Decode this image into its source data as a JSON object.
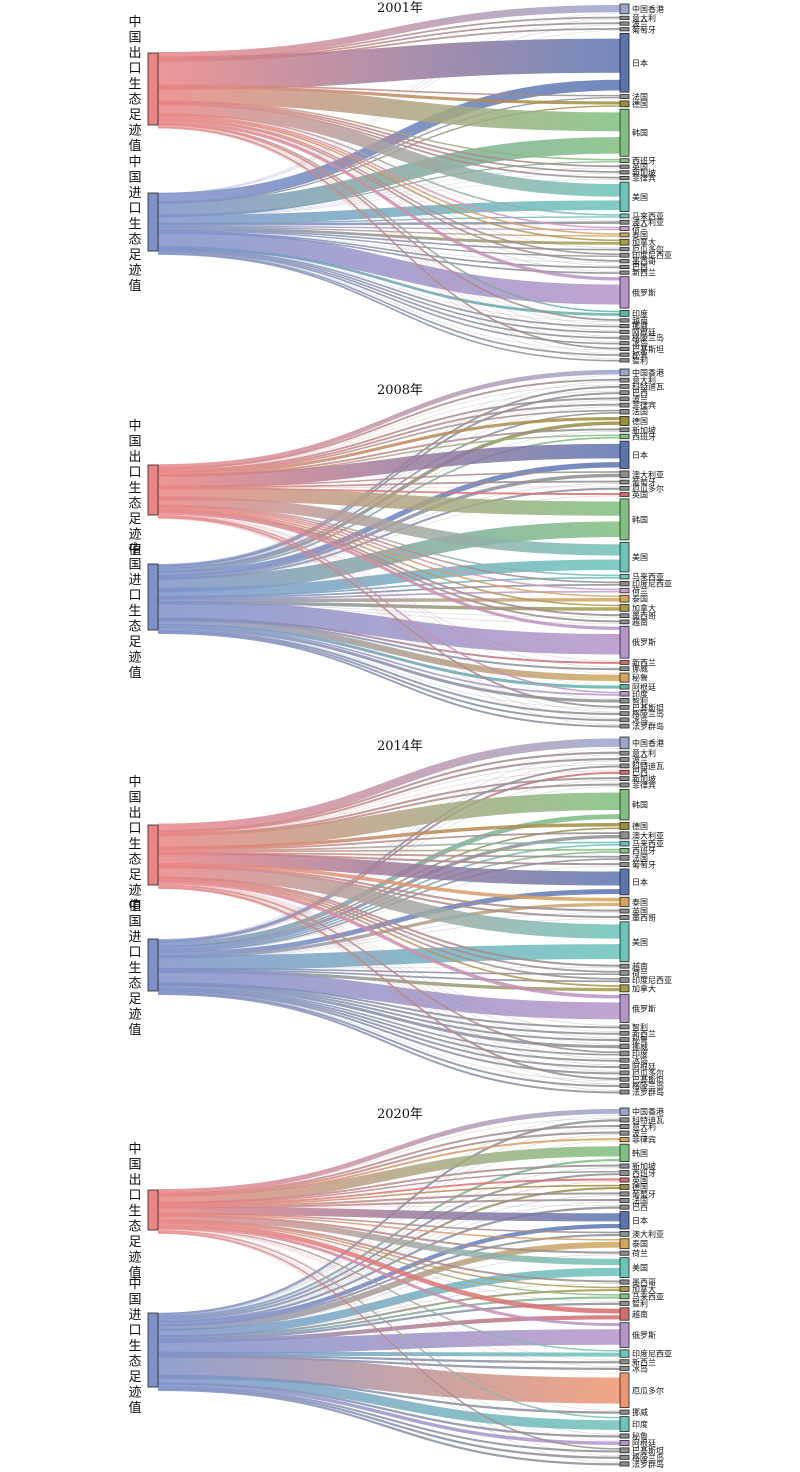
{
  "figure": {
    "panels": [
      {
        "year": "2001年",
        "export_label": "中国出口生态足迹值",
        "import_label": "中国进口生态足迹值",
        "export_value": 72,
        "import_value": 58,
        "partners": [
          {
            "name": "中国香港",
            "export": 5,
            "import": 0,
            "color": "#9aa5cc"
          },
          {
            "name": "意大利",
            "export": 1,
            "import": 0,
            "color": "#8e8e8e"
          },
          {
            "name": "波兰",
            "export": 1,
            "import": 0,
            "color": "#8e8e8e"
          },
          {
            "name": "葡萄牙",
            "export": 1,
            "import": 0,
            "color": "#8e8e8e"
          },
          {
            "name": "日本",
            "export": 22,
            "import": 8,
            "color": "#5b74b0"
          },
          {
            "name": "法国",
            "export": 1,
            "import": 1,
            "color": "#8e8e8e"
          },
          {
            "name": "德国",
            "export": 2,
            "import": 1,
            "color": "#9a8e3a"
          },
          {
            "name": "韩国",
            "export": 12,
            "import": 12,
            "color": "#7fbf7f"
          },
          {
            "name": "西班牙",
            "export": 1,
            "import": 1,
            "color": "#7fbf7f"
          },
          {
            "name": "英国",
            "export": 1,
            "import": 0,
            "color": "#8e8e8e"
          },
          {
            "name": "新加坡",
            "export": 1,
            "import": 0,
            "color": "#8e8e8e"
          },
          {
            "name": "菲律宾",
            "export": 1,
            "import": 0,
            "color": "#8e8e8e"
          },
          {
            "name": "美国",
            "export": 8,
            "import": 7,
            "color": "#6cc3b9"
          },
          {
            "name": "马来西亚",
            "export": 1,
            "import": 1,
            "color": "#6cc3b9"
          },
          {
            "name": "澳大利亚",
            "export": 0,
            "import": 2,
            "color": "#8e8e8e"
          },
          {
            "name": "荷兰",
            "export": 1,
            "import": 1,
            "color": "#c9a0c9"
          },
          {
            "name": "泰国",
            "export": 1,
            "import": 1,
            "color": "#d4a55a"
          },
          {
            "name": "加拿大",
            "export": 1,
            "import": 2,
            "color": "#a59b48"
          },
          {
            "name": "厄瓜多尔",
            "export": 0,
            "import": 1,
            "color": "#8e8e8e"
          },
          {
            "name": "印度尼西亚",
            "export": 1,
            "import": 1,
            "color": "#8e8e8e"
          },
          {
            "name": "墨西哥",
            "export": 1,
            "import": 0,
            "color": "#8e8e8e"
          },
          {
            "name": "巴西",
            "export": 0,
            "import": 1,
            "color": "#8e8e8e"
          },
          {
            "name": "新西兰",
            "export": 0,
            "import": 1,
            "color": "#8e8e8e"
          },
          {
            "name": "俄罗斯",
            "export": 2,
            "import": 14,
            "color": "#b594c9"
          },
          {
            "name": "印度",
            "export": 1,
            "import": 2,
            "color": "#5fb4a8"
          },
          {
            "name": "越南",
            "export": 1,
            "import": 0,
            "color": "#8e8e8e"
          },
          {
            "name": "挪威",
            "export": 0,
            "import": 1,
            "color": "#8e8e8e"
          },
          {
            "name": "阿根廷",
            "export": 0,
            "import": 1,
            "color": "#8e8e8e"
          },
          {
            "name": "格陵兰岛",
            "export": 0,
            "import": 1,
            "color": "#8e8e8e"
          },
          {
            "name": "冰岛",
            "export": 0,
            "import": 1,
            "color": "#8e8e8e"
          },
          {
            "name": "巴基斯坦",
            "export": 1,
            "import": 0,
            "color": "#8e8e8e"
          },
          {
            "name": "秘鲁",
            "export": 0,
            "import": 1,
            "color": "#8e8e8e"
          },
          {
            "name": "智利",
            "export": 0,
            "import": 1,
            "color": "#8e8e8e"
          }
        ]
      },
      {
        "year": "2008年",
        "export_label": "中国出口生态足迹值",
        "import_label": "中国进口生态足迹值",
        "export_value": 50,
        "import_value": 66,
        "partners": [
          {
            "name": "中国香港",
            "export": 3,
            "import": 0,
            "color": "#9aa5cc"
          },
          {
            "name": "意大利",
            "export": 1,
            "import": 0,
            "color": "#8e8e8e"
          },
          {
            "name": "科特迪瓦",
            "export": 0,
            "import": 1,
            "color": "#8e8e8e"
          },
          {
            "name": "巴西",
            "export": 0,
            "import": 1,
            "color": "#8e8e8e"
          },
          {
            "name": "波兰",
            "export": 1,
            "import": 0,
            "color": "#8e8e8e"
          },
          {
            "name": "菲律宾",
            "export": 1,
            "import": 0,
            "color": "#8e8e8e"
          },
          {
            "name": "法国",
            "export": 1,
            "import": 1,
            "color": "#8e8e8e"
          },
          {
            "name": "德国",
            "export": 2,
            "import": 2,
            "color": "#9a8e3a"
          },
          {
            "name": "新加坡",
            "export": 1,
            "import": 0,
            "color": "#8e8e8e"
          },
          {
            "name": "西班牙",
            "export": 1,
            "import": 1,
            "color": "#7fbf7f"
          },
          {
            "name": "日本",
            "export": 9,
            "import": 3,
            "color": "#5b74b0"
          },
          {
            "name": "澳大利亚",
            "export": 1,
            "import": 2,
            "color": "#8e8e8e"
          },
          {
            "name": "葡萄牙",
            "export": 1,
            "import": 0,
            "color": "#8e8e8e"
          },
          {
            "name": "厄瓜多尔",
            "export": 0,
            "import": 1,
            "color": "#8e8e8e"
          },
          {
            "name": "英国",
            "export": 1,
            "import": 0,
            "color": "#d46c6c"
          },
          {
            "name": "韩国",
            "export": 9,
            "import": 9,
            "color": "#7fbf7f"
          },
          {
            "name": "美国",
            "export": 7,
            "import": 6,
            "color": "#6cc3b9"
          },
          {
            "name": "马来西亚",
            "export": 1,
            "import": 1,
            "color": "#6cc3b9"
          },
          {
            "name": "印度尼西亚",
            "export": 1,
            "import": 1,
            "color": "#8e8e8e"
          },
          {
            "name": "荷兰",
            "export": 1,
            "import": 1,
            "color": "#c9a0c9"
          },
          {
            "name": "泰国",
            "export": 1,
            "import": 2,
            "color": "#d4a55a"
          },
          {
            "name": "加拿大",
            "export": 1,
            "import": 2,
            "color": "#a59b48"
          },
          {
            "name": "墨西哥",
            "export": 1,
            "import": 0,
            "color": "#8e8e8e"
          },
          {
            "name": "越南",
            "export": 1,
            "import": 0,
            "color": "#8e8e8e"
          },
          {
            "name": "俄罗斯",
            "export": 2,
            "import": 12,
            "color": "#b594c9"
          },
          {
            "name": "新西兰",
            "export": 0,
            "import": 1,
            "color": "#d46c6c"
          },
          {
            "name": "挪威",
            "export": 0,
            "import": 1,
            "color": "#8e8e8e"
          },
          {
            "name": "秘鲁",
            "export": 0,
            "import": 4,
            "color": "#d4a55a"
          },
          {
            "name": "阿根廷",
            "export": 0,
            "import": 2,
            "color": "#5fb4a8"
          },
          {
            "name": "印度",
            "export": 1,
            "import": 1,
            "color": "#b594c9"
          },
          {
            "name": "智利",
            "export": 0,
            "import": 2,
            "color": "#8e8e8e"
          },
          {
            "name": "巴基斯坦",
            "export": 1,
            "import": 0,
            "color": "#8e8e8e"
          },
          {
            "name": "格陵兰岛",
            "export": 0,
            "import": 1,
            "color": "#8e8e8e"
          },
          {
            "name": "冰岛",
            "export": 0,
            "import": 1,
            "color": "#8e8e8e"
          },
          {
            "name": "法罗群岛",
            "export": 0,
            "import": 1,
            "color": "#8e8e8e"
          }
        ]
      },
      {
        "year": "2014年",
        "export_label": "中国出口生态足迹值",
        "import_label": "中国进口生态足迹值",
        "export_value": 60,
        "import_value": 52,
        "partners": [
          {
            "name": "中国香港",
            "export": 5,
            "import": 0,
            "color": "#9aa5cc"
          },
          {
            "name": "意大利",
            "export": 1,
            "import": 0,
            "color": "#8e8e8e"
          },
          {
            "name": "波兰",
            "export": 1,
            "import": 0,
            "color": "#8e8e8e"
          },
          {
            "name": "科特迪瓦",
            "export": 0,
            "import": 1,
            "color": "#8e8e8e"
          },
          {
            "name": "巴西",
            "export": 0,
            "import": 1,
            "color": "#d46c6c"
          },
          {
            "name": "新加坡",
            "export": 1,
            "import": 0,
            "color": "#8e8e8e"
          },
          {
            "name": "菲律宾",
            "export": 1,
            "import": 0,
            "color": "#8e8e8e"
          },
          {
            "name": "韩国",
            "export": 10,
            "import": 3,
            "color": "#7fbf7f"
          },
          {
            "name": "德国",
            "export": 2,
            "import": 1,
            "color": "#9a8e3a"
          },
          {
            "name": "澳大利亚",
            "export": 1,
            "import": 2,
            "color": "#8e8e8e"
          },
          {
            "name": "马来西亚",
            "export": 1,
            "import": 1,
            "color": "#6cc3b9"
          },
          {
            "name": "西班牙",
            "export": 1,
            "import": 1,
            "color": "#7fbf7f"
          },
          {
            "name": "法国",
            "export": 1,
            "import": 1,
            "color": "#8e8e8e"
          },
          {
            "name": "葡萄牙",
            "export": 1,
            "import": 0,
            "color": "#8e8e8e"
          },
          {
            "name": "日本",
            "export": 8,
            "import": 3,
            "color": "#5b74b0"
          },
          {
            "name": "泰国",
            "export": 2,
            "import": 2,
            "color": "#d4a55a"
          },
          {
            "name": "英国",
            "export": 1,
            "import": 0,
            "color": "#8e8e8e"
          },
          {
            "name": "墨西哥",
            "export": 1,
            "import": 0,
            "color": "#8e8e8e"
          },
          {
            "name": "美国",
            "export": 8,
            "import": 9,
            "color": "#6cc3b9"
          },
          {
            "name": "越南",
            "export": 1,
            "import": 0,
            "color": "#8e8e8e"
          },
          {
            "name": "荷兰",
            "export": 1,
            "import": 1,
            "color": "#8e8e8e"
          },
          {
            "name": "印度尼西亚",
            "export": 1,
            "import": 1,
            "color": "#8e8e8e"
          },
          {
            "name": "加拿大",
            "export": 1,
            "import": 2,
            "color": "#a59b48"
          },
          {
            "name": "俄罗斯",
            "export": 2,
            "import": 10,
            "color": "#b594c9"
          },
          {
            "name": "智利",
            "export": 0,
            "import": 1,
            "color": "#8e8e8e"
          },
          {
            "name": "新西兰",
            "export": 0,
            "import": 1,
            "color": "#8e8e8e"
          },
          {
            "name": "秘鲁",
            "export": 0,
            "import": 1,
            "color": "#8e8e8e"
          },
          {
            "name": "挪威",
            "export": 0,
            "import": 2,
            "color": "#8e8e8e"
          },
          {
            "name": "印度",
            "export": 1,
            "import": 1,
            "color": "#8e8e8e"
          },
          {
            "name": "冰岛",
            "export": 0,
            "import": 1,
            "color": "#8e8e8e"
          },
          {
            "name": "阿根廷",
            "export": 0,
            "import": 1,
            "color": "#8e8e8e"
          },
          {
            "name": "厄瓜多尔",
            "export": 0,
            "import": 1,
            "color": "#8e8e8e"
          },
          {
            "name": "巴基斯坦",
            "export": 1,
            "import": 0,
            "color": "#8e8e8e"
          },
          {
            "name": "格陵兰岛",
            "export": 0,
            "import": 1,
            "color": "#8e8e8e"
          },
          {
            "name": "法罗群岛",
            "export": 0,
            "import": 1,
            "color": "#8e8e8e"
          }
        ]
      },
      {
        "year": "2020年",
        "export_label": "中国出口生态足迹值",
        "import_label": "中国进口生态足迹值",
        "export_value": 40,
        "import_value": 74,
        "partners": [
          {
            "name": "中国香港",
            "export": 3,
            "import": 0,
            "color": "#9aa5cc"
          },
          {
            "name": "科特迪瓦",
            "export": 0,
            "import": 1,
            "color": "#8e8e8e"
          },
          {
            "name": "意大利",
            "export": 1,
            "import": 0,
            "color": "#8e8e8e"
          },
          {
            "name": "波兰",
            "export": 1,
            "import": 0,
            "color": "#8e8e8e"
          },
          {
            "name": "菲律宾",
            "export": 1,
            "import": 0,
            "color": "#d4a55a"
          },
          {
            "name": "韩国",
            "export": 6,
            "import": 1,
            "color": "#7fbf7f"
          },
          {
            "name": "新加坡",
            "export": 1,
            "import": 0,
            "color": "#8e8e8e"
          },
          {
            "name": "西班牙",
            "export": 1,
            "import": 1,
            "color": "#8e8e8e"
          },
          {
            "name": "英国",
            "export": 1,
            "import": 0,
            "color": "#d46c6c"
          },
          {
            "name": "德国",
            "export": 1,
            "import": 1,
            "color": "#9a8e3a"
          },
          {
            "name": "葡萄牙",
            "export": 1,
            "import": 0,
            "color": "#8e8e8e"
          },
          {
            "name": "法国",
            "export": 1,
            "import": 0,
            "color": "#8e8e8e"
          },
          {
            "name": "巴西",
            "export": 0,
            "import": 1,
            "color": "#8e8e8e"
          },
          {
            "name": "日本",
            "export": 5,
            "import": 2,
            "color": "#5b74b0"
          },
          {
            "name": "澳大利亚",
            "export": 1,
            "import": 1,
            "color": "#8e8e8e"
          },
          {
            "name": "泰国",
            "export": 1,
            "import": 3,
            "color": "#d4a55a"
          },
          {
            "name": "荷兰",
            "export": 1,
            "import": 0,
            "color": "#8e8e8e"
          },
          {
            "name": "美国",
            "export": 4,
            "import": 4,
            "color": "#6cc3b9"
          },
          {
            "name": "墨西哥",
            "export": 1,
            "import": 0,
            "color": "#8e8e8e"
          },
          {
            "name": "加拿大",
            "export": 1,
            "import": 1,
            "color": "#a59b48"
          },
          {
            "name": "马来西亚",
            "export": 1,
            "import": 1,
            "color": "#7fbf7f"
          },
          {
            "name": "智利",
            "export": 0,
            "import": 1,
            "color": "#8e8e8e"
          },
          {
            "name": "越南",
            "export": 3,
            "import": 2,
            "color": "#d46c6c"
          },
          {
            "name": "俄罗斯",
            "export": 2,
            "import": 8,
            "color": "#b594c9"
          },
          {
            "name": "印度尼西亚",
            "export": 1,
            "import": 2,
            "color": "#6cc3b9"
          },
          {
            "name": "新西兰",
            "export": 0,
            "import": 1,
            "color": "#8e8e8e"
          },
          {
            "name": "冰岛",
            "export": 0,
            "import": 1,
            "color": "#8e8e8e"
          },
          {
            "name": "厄瓜多尔",
            "export": 0,
            "import": 14,
            "color": "#ef9570"
          },
          {
            "name": "挪威",
            "export": 0,
            "import": 1,
            "color": "#8e8e8e"
          },
          {
            "name": "印度",
            "export": 1,
            "import": 5,
            "color": "#6cc3b9"
          },
          {
            "name": "秘鲁",
            "export": 0,
            "import": 1,
            "color": "#8e8e8e"
          },
          {
            "name": "阿根廷",
            "export": 0,
            "import": 2,
            "color": "#b594c9"
          },
          {
            "name": "巴基斯坦",
            "export": 1,
            "import": 1,
            "color": "#8e8e8e"
          },
          {
            "name": "格陵兰岛",
            "export": 0,
            "import": 1,
            "color": "#8e8e8e"
          },
          {
            "name": "法罗群岛",
            "export": 0,
            "import": 1,
            "color": "#8e8e8e"
          }
        ]
      }
    ],
    "colors": {
      "export": "#e98585",
      "import": "#7f92c8"
    }
  }
}
